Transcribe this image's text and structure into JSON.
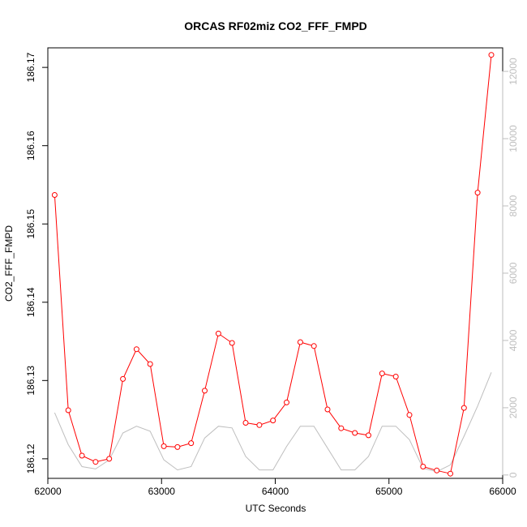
{
  "chart_data": {
    "type": "line",
    "title": "ORCAS RF02miz CO2_FFF_FMPD",
    "xlabel": "UTC Seconds",
    "ylabel": "CO2_FFF_FMPD",
    "xlim": [
      62000,
      66000
    ],
    "ylim": [
      186.1175,
      186.1725
    ],
    "y2lim": [
      -100,
      12700
    ],
    "x_ticks": [
      62000,
      63000,
      64000,
      65000,
      66000
    ],
    "y_ticks": [
      186.12,
      186.13,
      186.14,
      186.15,
      186.16,
      186.17
    ],
    "y2_ticks": [
      0,
      2000,
      4000,
      6000,
      8000,
      10000,
      12000
    ],
    "colors": {
      "primary": "#ff0000",
      "secondary": "#bebebe"
    },
    "series": [
      {
        "x": [
          62060,
          62180,
          62300,
          62420,
          62540,
          62660,
          62780,
          62900,
          63020,
          63140,
          63260,
          63380,
          63500,
          63620,
          63740,
          63860,
          63980,
          64100,
          64220,
          64340,
          64460,
          64580,
          64700,
          64820,
          64940,
          65060,
          65180,
          65300,
          65420,
          65540,
          65660,
          65780,
          65900
        ],
        "values": [
          186.1537,
          186.1262,
          186.1204,
          186.1196,
          186.12,
          186.1302,
          186.134,
          186.1321,
          186.1216,
          186.1215,
          186.122,
          186.1287,
          186.136,
          186.1348,
          186.1246,
          186.1243,
          186.1249,
          186.1272,
          186.1349,
          186.1344,
          186.1263,
          186.1239,
          186.1233,
          186.123,
          186.1309,
          186.1305,
          186.1256,
          186.119,
          186.1185,
          186.1181,
          186.1265,
          186.154,
          186.1716
        ]
      },
      {
        "x": [
          62060,
          62180,
          62300,
          62420,
          62540,
          62660,
          62780,
          62900,
          63020,
          63140,
          63260,
          63380,
          63500,
          63620,
          63740,
          63860,
          63980,
          64100,
          64220,
          64340,
          64460,
          64580,
          64700,
          64820,
          64940,
          65060,
          65180,
          65300,
          65420,
          65540,
          65660,
          65780,
          65900
        ],
        "values": [
          1850,
          900,
          250,
          180,
          450,
          1250,
          1450,
          1300,
          450,
          150,
          250,
          1100,
          1450,
          1400,
          550,
          150,
          150,
          850,
          1450,
          1450,
          800,
          150,
          150,
          550,
          1450,
          1450,
          1050,
          200,
          100,
          300,
          1150,
          2050,
          3050
        ]
      }
    ]
  }
}
